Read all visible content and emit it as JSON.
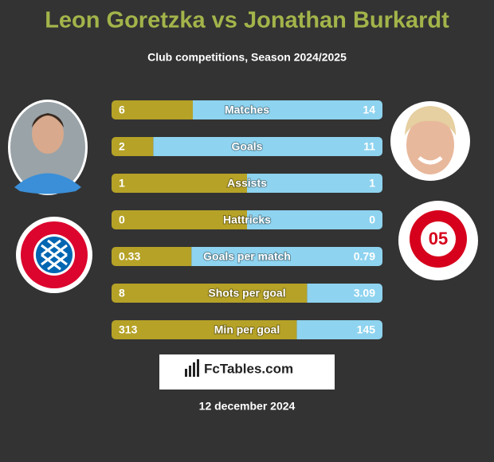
{
  "header": {
    "title": "Leon Goretzka vs Jonathan Burkardt",
    "subtitle": "Club competitions, Season 2024/2025"
  },
  "left_color": "#b5a227",
  "right_color": "#8ed3ef",
  "rows": [
    {
      "label": "Matches",
      "left": 6,
      "right": 14
    },
    {
      "label": "Goals",
      "left": 2,
      "right": 11
    },
    {
      "label": "Assists",
      "left": 1,
      "right": 1
    },
    {
      "label": "Hattricks",
      "left": 0,
      "right": 0
    },
    {
      "label": "Goals per match",
      "left": 0.33,
      "right": 0.79
    },
    {
      "label": "Shots per goal",
      "left": 8,
      "right": 3.09
    },
    {
      "label": "Min per goal",
      "left": 313,
      "right": 145
    }
  ],
  "footer": {
    "brand": "FcTables.com",
    "date": "12 december 2024"
  }
}
